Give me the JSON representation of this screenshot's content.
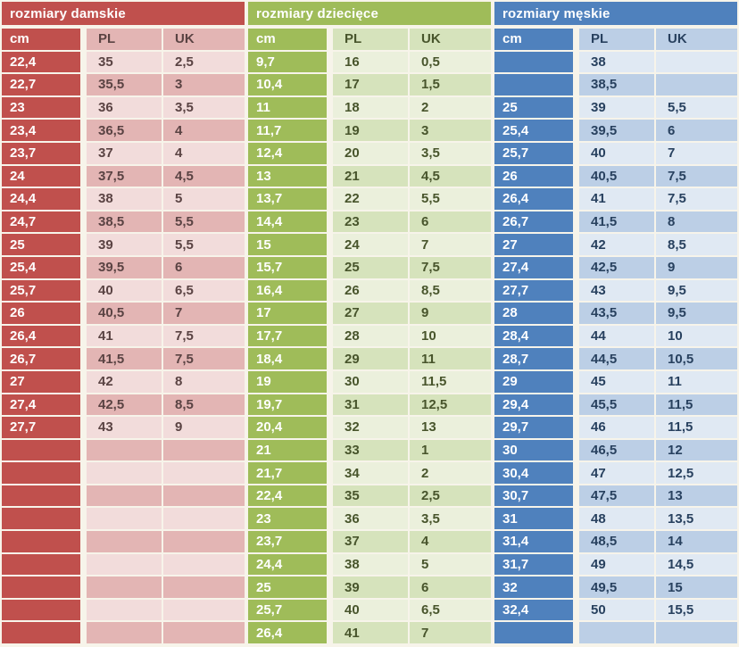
{
  "chart_data": [
    {
      "type": "table",
      "title": "rozmiary damskie",
      "columns": [
        "cm",
        "PL",
        "UK"
      ],
      "colors": {
        "accent": "#c0504d",
        "band1": "#f2dcdb",
        "band2": "#e3b5b4",
        "text": "#5a4343",
        "title_text": "#ffffff"
      },
      "rows": [
        [
          "22,4",
          "35",
          "2,5"
        ],
        [
          "22,7",
          "35,5",
          "3"
        ],
        [
          "23",
          "36",
          "3,5"
        ],
        [
          "23,4",
          "36,5",
          "4"
        ],
        [
          "23,7",
          "37",
          "4"
        ],
        [
          "24",
          "37,5",
          "4,5"
        ],
        [
          "24,4",
          "38",
          "5"
        ],
        [
          "24,7",
          "38,5",
          "5,5"
        ],
        [
          "25",
          "39",
          "5,5"
        ],
        [
          "25,4",
          "39,5",
          "6"
        ],
        [
          "25,7",
          "40",
          "6,5"
        ],
        [
          "26",
          "40,5",
          "7"
        ],
        [
          "26,4",
          "41",
          "7,5"
        ],
        [
          "26,7",
          "41,5",
          "7,5"
        ],
        [
          "27",
          "42",
          "8"
        ],
        [
          "27,4",
          "42,5",
          "8,5"
        ],
        [
          "27,7",
          "43",
          "9"
        ],
        [
          "",
          "",
          ""
        ],
        [
          "",
          "",
          ""
        ],
        [
          "",
          "",
          ""
        ],
        [
          "",
          "",
          ""
        ],
        [
          "",
          "",
          ""
        ],
        [
          "",
          "",
          ""
        ],
        [
          "",
          "",
          ""
        ],
        [
          "",
          "",
          ""
        ],
        [
          "",
          "",
          ""
        ]
      ]
    },
    {
      "type": "table",
      "title": "rozmiary dziecięce",
      "columns": [
        "cm",
        "PL",
        "UK"
      ],
      "colors": {
        "accent": "#9fbc59",
        "band1": "#ebf0dc",
        "band2": "#d6e3bc",
        "text": "#48552c",
        "title_text": "#ffffff"
      },
      "rows": [
        [
          "9,7",
          "16",
          "0,5"
        ],
        [
          "10,4",
          "17",
          "1,5"
        ],
        [
          "11",
          "18",
          "2"
        ],
        [
          "11,7",
          "19",
          "3"
        ],
        [
          "12,4",
          "20",
          "3,5"
        ],
        [
          "13",
          "21",
          "4,5"
        ],
        [
          "13,7",
          "22",
          "5,5"
        ],
        [
          "14,4",
          "23",
          "6"
        ],
        [
          "15",
          "24",
          "7"
        ],
        [
          "15,7",
          "25",
          "7,5"
        ],
        [
          "16,4",
          "26",
          "8,5"
        ],
        [
          "17",
          "27",
          "9"
        ],
        [
          "17,7",
          "28",
          "10"
        ],
        [
          "18,4",
          "29",
          "11"
        ],
        [
          "19",
          "30",
          "11,5"
        ],
        [
          "19,7",
          "31",
          "12,5"
        ],
        [
          "20,4",
          "32",
          "13"
        ],
        [
          "21",
          "33",
          "1"
        ],
        [
          "21,7",
          "34",
          "2"
        ],
        [
          "22,4",
          "35",
          "2,5"
        ],
        [
          "23",
          "36",
          "3,5"
        ],
        [
          "23,7",
          "37",
          "4"
        ],
        [
          "24,4",
          "38",
          "5"
        ],
        [
          "25",
          "39",
          "6"
        ],
        [
          "25,7",
          "40",
          "6,5"
        ],
        [
          "26,4",
          "41",
          "7"
        ]
      ]
    },
    {
      "type": "table",
      "title": "rozmiary męskie",
      "columns": [
        "cm",
        "PL",
        "UK"
      ],
      "colors": {
        "accent": "#4f81bd",
        "band1": "#e0e9f3",
        "band2": "#bccfe6",
        "text": "#28415f",
        "title_text": "#ffffff"
      },
      "rows": [
        [
          "",
          "38",
          ""
        ],
        [
          "",
          "38,5",
          ""
        ],
        [
          "25",
          "39",
          "5,5"
        ],
        [
          "25,4",
          "39,5",
          "6"
        ],
        [
          "25,7",
          "40",
          "7"
        ],
        [
          "26",
          "40,5",
          "7,5"
        ],
        [
          "26,4",
          "41",
          "7,5"
        ],
        [
          "26,7",
          "41,5",
          "8"
        ],
        [
          "27",
          "42",
          "8,5"
        ],
        [
          "27,4",
          "42,5",
          "9"
        ],
        [
          "27,7",
          "43",
          "9,5"
        ],
        [
          "28",
          "43,5",
          "9,5"
        ],
        [
          "28,4",
          "44",
          "10"
        ],
        [
          "28,7",
          "44,5",
          "10,5"
        ],
        [
          "29",
          "45",
          "11"
        ],
        [
          "29,4",
          "45,5",
          "11,5"
        ],
        [
          "29,7",
          "46",
          "11,5"
        ],
        [
          "30",
          "46,5",
          "12"
        ],
        [
          "30,4",
          "47",
          "12,5"
        ],
        [
          "30,7",
          "47,5",
          "13"
        ],
        [
          "31",
          "48",
          "13,5"
        ],
        [
          "31,4",
          "48,5",
          "14"
        ],
        [
          "31,7",
          "49",
          "14,5"
        ],
        [
          "32",
          "49,5",
          "15"
        ],
        [
          "32,4",
          "50",
          "15,5"
        ],
        [
          "",
          "",
          ""
        ]
      ]
    }
  ]
}
